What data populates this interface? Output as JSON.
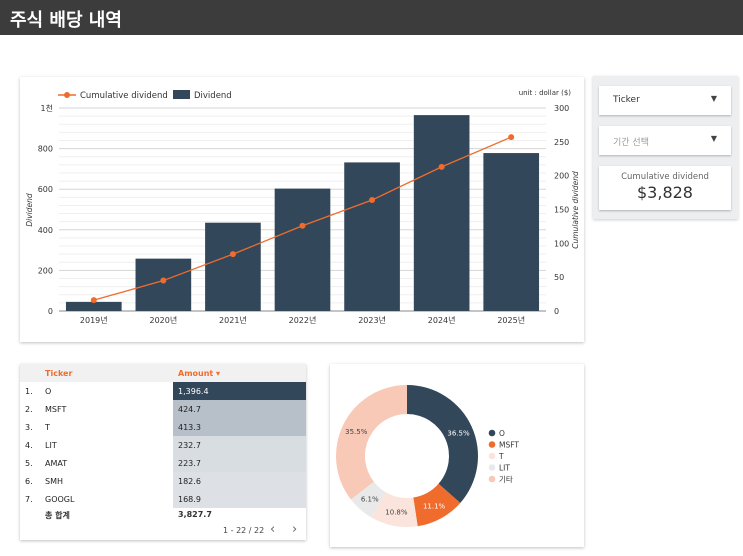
{
  "page": {
    "title": "주식 배당 내역"
  },
  "chart": {
    "unit_label": "unit : dollar ($)",
    "legend_line": "Cumulative dividend",
    "legend_bar": "Dividend",
    "left_axis_title": "Dividend",
    "right_axis_title": "Cumulative dividend",
    "left_ticks": [
      "0",
      "200",
      "400",
      "600",
      "800",
      "1천"
    ],
    "right_ticks": [
      "0",
      "50",
      "100",
      "150",
      "200",
      "250",
      "300"
    ],
    "colors": {
      "bar": "#33475b",
      "line": "#ef6c2d"
    }
  },
  "chart_data": [
    {
      "type": "bar+line",
      "categories": [
        "2019년",
        "2020년",
        "2021년",
        "2022년",
        "2023년",
        "2024년",
        "2025년"
      ],
      "series": [
        {
          "name": "Dividend",
          "type": "bar",
          "axis": "left",
          "values": [
            45,
            258,
            435,
            603,
            732,
            965,
            778
          ]
        },
        {
          "name": "Cumulative dividend",
          "type": "line",
          "axis": "right",
          "values": [
            16,
            45,
            84,
            126,
            164,
            213,
            257
          ]
        }
      ],
      "xlabel": "",
      "ylabel": "Dividend",
      "y2label": "Cumulative dividend",
      "ylim": [
        0,
        1000
      ],
      "y2lim": [
        0,
        300
      ],
      "legend": "top-left",
      "grid": true
    },
    {
      "type": "pie",
      "style": "donut",
      "categories": [
        "O",
        "MSFT",
        "T",
        "LIT",
        "기타"
      ],
      "values": [
        36.5,
        11.1,
        10.8,
        6.1,
        35.5
      ],
      "value_labels": [
        "36.5%",
        "11.1%",
        "10.8%",
        "6.1%",
        "35.5%"
      ],
      "colors": [
        "#33475b",
        "#ef6c2d",
        "#fbe4dc",
        "#e9e9e9",
        "#f9c9b7"
      ],
      "legend": "right"
    }
  ],
  "controls": {
    "ticker_label": "Ticker",
    "period_label": "기간 선택",
    "cumulative_label": "Cumulative dividend",
    "cumulative_value": "$3,828"
  },
  "table": {
    "col_ticker": "Ticker",
    "col_amount": "Amount ▾",
    "rows": [
      {
        "n": "1.",
        "ticker": "O",
        "amount": "1,396.4",
        "fill": "#33475b",
        "text": "#ffffff"
      },
      {
        "n": "2.",
        "ticker": "MSFT",
        "amount": "424.7",
        "fill": "#b7bfc8",
        "text": "#222222"
      },
      {
        "n": "3.",
        "ticker": "T",
        "amount": "413.3",
        "fill": "#b7bfc8",
        "text": "#222222"
      },
      {
        "n": "4.",
        "ticker": "LIT",
        "amount": "232.7",
        "fill": "#d8dde2",
        "text": "#222222"
      },
      {
        "n": "5.",
        "ticker": "AMAT",
        "amount": "223.7",
        "fill": "#d8dde2",
        "text": "#222222"
      },
      {
        "n": "6.",
        "ticker": "SMH",
        "amount": "182.6",
        "fill": "#dde1e5",
        "text": "#222222"
      },
      {
        "n": "7.",
        "ticker": "GOOGL",
        "amount": "168.9",
        "fill": "#dde1e5",
        "text": "#222222"
      }
    ],
    "total_label": "총 합계",
    "total_amount": "3,827.7",
    "pager": "1 - 22 / 22",
    "prev_icon": "‹",
    "next_icon": "›"
  }
}
